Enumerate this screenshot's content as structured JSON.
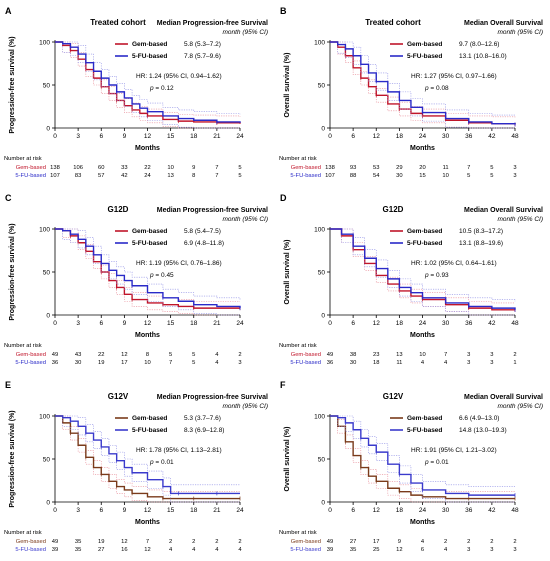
{
  "colors": {
    "gem": "#c0152a",
    "fu": "#2a2ac8",
    "gem_ci": "#e88a96",
    "fu_ci": "#8f8fe6",
    "gem_dark": "#7a3a1a",
    "fu_v": "#3a3acc"
  },
  "chart_data": [
    {
      "type": "line",
      "panel_label": "A",
      "title": "Treated cohort",
      "legend_title": "Median Progression-free Survival",
      "legend_subtitle": "month (95% CI)",
      "ylabel": "Progression-free survival (%)",
      "xlabel": "Months",
      "xlim": [
        0,
        24
      ],
      "ylim": [
        0,
        100
      ],
      "x_ticks": [
        0,
        3,
        6,
        9,
        12,
        15,
        18,
        21,
        24
      ],
      "y_ticks": [
        0,
        50,
        100
      ],
      "series": [
        {
          "name": "Gem-based",
          "median": "5.8 (5.3–7.2)",
          "color": "#c0152a",
          "x": [
            0,
            1,
            2,
            3,
            4,
            5,
            6,
            7,
            8,
            9,
            10,
            11,
            12,
            14,
            16,
            18,
            21,
            24
          ],
          "y": [
            100,
            96,
            90,
            80,
            68,
            58,
            48,
            40,
            32,
            26,
            21,
            17,
            14,
            10,
            8,
            7,
            6,
            5
          ]
        },
        {
          "name": "5-FU-based",
          "median": "7.8 (5.7–9.6)",
          "color": "#2a2ac8",
          "x": [
            0,
            1,
            2,
            3,
            4,
            5,
            6,
            7,
            8,
            9,
            10,
            11,
            12,
            14,
            16,
            18,
            21,
            24
          ],
          "y": [
            100,
            98,
            94,
            86,
            76,
            66,
            58,
            50,
            42,
            35,
            28,
            23,
            19,
            14,
            11,
            9,
            7,
            6
          ]
        }
      ],
      "hr_text": "HR: 1.24 (95% CI, 0.94–1.62)",
      "p_label": "p",
      "p_value": "= 0.12",
      "risk_title": "Number at risk",
      "risk_rows": [
        {
          "name": "Gem-based",
          "values": [
            "138",
            "106",
            "60",
            "33",
            "22",
            "10",
            "9",
            "7",
            "5"
          ]
        },
        {
          "name": "5-FU-based",
          "values": [
            "107",
            "83",
            "57",
            "42",
            "24",
            "13",
            "8",
            "7",
            "5"
          ]
        }
      ]
    },
    {
      "type": "line",
      "panel_label": "B",
      "title": "Treated cohort",
      "legend_title": "Median Overall Survival",
      "legend_subtitle": "month (95% CI)",
      "ylabel": "Overall survival (%)",
      "xlabel": "Months",
      "xlim": [
        0,
        48
      ],
      "ylim": [
        0,
        100
      ],
      "x_ticks": [
        0,
        6,
        12,
        18,
        24,
        30,
        36,
        42,
        48
      ],
      "y_ticks": [
        0,
        50,
        100
      ],
      "series": [
        {
          "name": "Gem-based",
          "median": "9.7 (8.0–12.6)",
          "color": "#c0152a",
          "x": [
            0,
            2,
            4,
            6,
            8,
            10,
            12,
            15,
            18,
            21,
            24,
            30,
            36,
            42,
            48
          ],
          "y": [
            100,
            94,
            84,
            70,
            58,
            48,
            38,
            28,
            22,
            17,
            14,
            9,
            6,
            5,
            4
          ]
        },
        {
          "name": "5-FU-based",
          "median": "13.1 (10.8–16.0)",
          "color": "#2a2ac8",
          "x": [
            0,
            2,
            4,
            6,
            8,
            10,
            12,
            15,
            18,
            21,
            24,
            30,
            36,
            42,
            48
          ],
          "y": [
            100,
            97,
            92,
            84,
            74,
            64,
            54,
            42,
            32,
            24,
            18,
            11,
            7,
            5,
            4
          ]
        }
      ],
      "hr_text": "HR: 1.27 (95% CI, 0.97–1.66)",
      "p_label": "p",
      "p_value": "= 0.08",
      "risk_title": "Number at risk",
      "risk_rows": [
        {
          "name": "Gem-based",
          "values": [
            "138",
            "93",
            "53",
            "29",
            "20",
            "11",
            "7",
            "5",
            "3"
          ]
        },
        {
          "name": "5-FU-based",
          "values": [
            "107",
            "88",
            "54",
            "30",
            "15",
            "10",
            "5",
            "5",
            "3"
          ]
        }
      ]
    },
    {
      "type": "line",
      "panel_label": "C",
      "title": "G12D",
      "legend_title": "Median Progression-free Survival",
      "legend_subtitle": "month (95% CI)",
      "ylabel": "Progression-free survival (%)",
      "xlabel": "Months",
      "xlim": [
        0,
        24
      ],
      "ylim": [
        0,
        100
      ],
      "x_ticks": [
        0,
        3,
        6,
        9,
        12,
        15,
        18,
        21,
        24
      ],
      "y_ticks": [
        0,
        50,
        100
      ],
      "series": [
        {
          "name": "Gem-based",
          "median": "5.8 (5.4–7.5)",
          "color": "#c0152a",
          "x": [
            0,
            1,
            2,
            3,
            4,
            5,
            6,
            7,
            8,
            9,
            10,
            12,
            14,
            16,
            18,
            21,
            24
          ],
          "y": [
            100,
            98,
            92,
            84,
            74,
            62,
            50,
            40,
            32,
            24,
            18,
            14,
            12,
            10,
            8,
            8,
            8
          ]
        },
        {
          "name": "5-FU-based",
          "median": "6.9 (4.8–11.8)",
          "color": "#2a2ac8",
          "x": [
            0,
            1,
            2,
            3,
            4,
            5,
            6,
            7,
            8,
            9,
            10,
            12,
            14,
            16,
            18,
            21,
            24
          ],
          "y": [
            100,
            98,
            94,
            88,
            80,
            70,
            60,
            52,
            46,
            40,
            34,
            26,
            20,
            16,
            12,
            10,
            8
          ]
        }
      ],
      "hr_text": "HR: 1.19 (95% CI, 0.76–1.86)",
      "p_label": "p",
      "p_value": "= 0.45",
      "risk_title": "Number at risk",
      "risk_rows": [
        {
          "name": "Gem-based",
          "values": [
            "49",
            "43",
            "22",
            "12",
            "8",
            "5",
            "5",
            "4",
            "2"
          ]
        },
        {
          "name": "5-FU-based",
          "values": [
            "36",
            "30",
            "19",
            "17",
            "10",
            "7",
            "5",
            "4",
            "3"
          ]
        }
      ]
    },
    {
      "type": "line",
      "panel_label": "D",
      "title": "G12D",
      "legend_title": "Median Overall Survival",
      "legend_subtitle": "month (95% CI)",
      "ylabel": "Overall survival (%)",
      "xlabel": "Months",
      "xlim": [
        0,
        48
      ],
      "ylim": [
        0,
        100
      ],
      "x_ticks": [
        0,
        6,
        12,
        18,
        24,
        30,
        36,
        42,
        48
      ],
      "y_ticks": [
        0,
        50,
        100
      ],
      "series": [
        {
          "name": "Gem-based",
          "median": "10.5 (8.3–17.2)",
          "color": "#c0152a",
          "x": [
            0,
            3,
            6,
            9,
            12,
            15,
            18,
            21,
            24,
            30,
            36,
            42,
            48
          ],
          "y": [
            100,
            92,
            76,
            60,
            46,
            36,
            28,
            22,
            18,
            12,
            8,
            6,
            6
          ]
        },
        {
          "name": "5-FU-based",
          "median": "13.1 (8.8–19.6)",
          "color": "#2a2ac8",
          "x": [
            0,
            3,
            6,
            9,
            12,
            15,
            18,
            21,
            24,
            30,
            36,
            42,
            48
          ],
          "y": [
            100,
            94,
            80,
            66,
            54,
            42,
            32,
            26,
            20,
            14,
            10,
            8,
            6
          ]
        }
      ],
      "hr_text": "HR: 1.02 (95% CI, 0.64–1.61)",
      "p_label": "p",
      "p_value": "= 0.93",
      "risk_title": "Number at risk",
      "risk_rows": [
        {
          "name": "Gem-based",
          "values": [
            "49",
            "38",
            "23",
            "13",
            "10",
            "7",
            "3",
            "3",
            "2"
          ]
        },
        {
          "name": "5-FU-based",
          "values": [
            "36",
            "30",
            "18",
            "11",
            "4",
            "4",
            "3",
            "3",
            "1"
          ]
        }
      ]
    },
    {
      "type": "line",
      "panel_label": "E",
      "title": "G12V",
      "legend_title": "Median Progression-free Survival",
      "legend_subtitle": "month (95% CI)",
      "ylabel": "Progression-free survival (%)",
      "xlabel": "Months",
      "xlim": [
        0,
        24
      ],
      "ylim": [
        0,
        100
      ],
      "x_ticks": [
        0,
        3,
        6,
        9,
        12,
        15,
        18,
        21,
        24
      ],
      "y_ticks": [
        0,
        50,
        100
      ],
      "series": [
        {
          "name": "Gem-based",
          "median": "5.3 (3.7–7.6)",
          "color": "#7a3a1a",
          "x": [
            0,
            1,
            2,
            3,
            4,
            5,
            6,
            7,
            8,
            9,
            10,
            12,
            14,
            16,
            18,
            21,
            24
          ],
          "y": [
            100,
            92,
            80,
            66,
            52,
            40,
            32,
            24,
            18,
            14,
            10,
            6,
            4,
            4,
            4,
            4,
            4
          ]
        },
        {
          "name": "5-FU-based",
          "median": "8.3 (6.9–12.8)",
          "color": "#3a3acc",
          "x": [
            0,
            1,
            2,
            3,
            4,
            5,
            6,
            7,
            8,
            9,
            10,
            12,
            14,
            15,
            16,
            18,
            21,
            24
          ],
          "y": [
            100,
            98,
            94,
            88,
            80,
            72,
            64,
            56,
            48,
            40,
            34,
            26,
            18,
            10,
            10,
            10,
            10,
            10
          ]
        }
      ],
      "hr_text": "HR: 1.78 (95% CI, 1.13–2.81)",
      "p_label": "p",
      "p_value": "= 0.01",
      "risk_title": "Number at risk",
      "risk_rows": [
        {
          "name": "Gem-based",
          "values": [
            "49",
            "35",
            "19",
            "12",
            "7",
            "2",
            "2",
            "2",
            "2"
          ]
        },
        {
          "name": "5-FU-based",
          "values": [
            "39",
            "35",
            "27",
            "16",
            "12",
            "4",
            "4",
            "4",
            "4"
          ]
        }
      ]
    },
    {
      "type": "line",
      "panel_label": "F",
      "title": "G12V",
      "legend_title": "Median Overall Survival",
      "legend_subtitle": "month (95% CI)",
      "ylabel": "Overall survival (%)",
      "xlabel": "Months",
      "xlim": [
        0,
        48
      ],
      "ylim": [
        0,
        100
      ],
      "x_ticks": [
        0,
        6,
        12,
        18,
        24,
        30,
        36,
        42,
        48
      ],
      "y_ticks": [
        0,
        50,
        100
      ],
      "series": [
        {
          "name": "Gem-based",
          "median": "6.6 (4.9–13.0)",
          "color": "#7a3a1a",
          "x": [
            0,
            2,
            4,
            6,
            8,
            10,
            12,
            15,
            18,
            21,
            24,
            30,
            36,
            42,
            48
          ],
          "y": [
            100,
            88,
            70,
            54,
            40,
            30,
            24,
            16,
            12,
            8,
            6,
            4,
            4,
            4,
            4
          ]
        },
        {
          "name": "5-FU-based",
          "median": "14.8 (13.0–19.3)",
          "color": "#3a3acc",
          "x": [
            0,
            2,
            4,
            6,
            8,
            10,
            12,
            15,
            18,
            21,
            24,
            30,
            36,
            42,
            48
          ],
          "y": [
            100,
            98,
            92,
            84,
            74,
            66,
            58,
            44,
            32,
            22,
            14,
            10,
            8,
            8,
            8
          ]
        }
      ],
      "hr_text": "HR: 1.91 (95% CI, 1.21–3.02)",
      "p_label": "p",
      "p_value": "= 0.01",
      "risk_title": "Number at risk",
      "risk_rows": [
        {
          "name": "Gem-based",
          "values": [
            "49",
            "27",
            "17",
            "9",
            "4",
            "2",
            "2",
            "2",
            "2"
          ]
        },
        {
          "name": "5-FU-based",
          "values": [
            "39",
            "35",
            "25",
            "12",
            "6",
            "4",
            "3",
            "3",
            "3"
          ]
        }
      ]
    }
  ]
}
